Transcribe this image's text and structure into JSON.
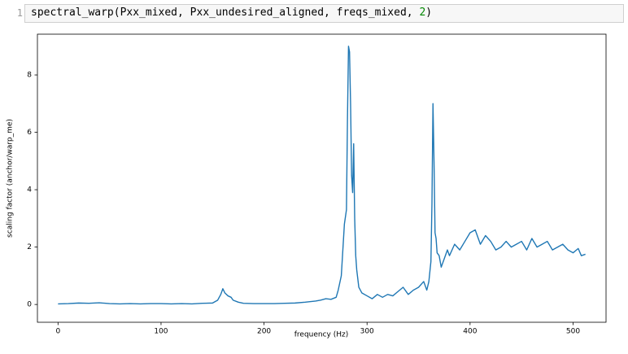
{
  "code": {
    "line_number": "1",
    "tokens": [
      "spectral_warp(Pxx_mixed, Pxx_undesired_aligned, freqs_mixed, ",
      "2",
      ")"
    ]
  },
  "chart_data": {
    "type": "line",
    "xlabel": "frequency (Hz)",
    "ylabel": "scaling factor (anchor/warp_me)",
    "xlim": [
      -20,
      532
    ],
    "ylim": [
      -0.62,
      9.42
    ],
    "xticks": [
      0,
      100,
      200,
      300,
      400,
      500
    ],
    "yticks": [
      0,
      2,
      4,
      6,
      8
    ],
    "series": [
      {
        "color": "#1f77b4",
        "x": [
          0,
          10,
          20,
          30,
          40,
          50,
          60,
          70,
          80,
          90,
          100,
          110,
          120,
          130,
          140,
          150,
          155,
          158,
          160,
          162,
          165,
          168,
          170,
          175,
          180,
          190,
          200,
          210,
          220,
          230,
          240,
          250,
          255,
          260,
          265,
          270,
          272,
          275,
          278,
          280,
          281,
          282,
          283,
          284,
          285,
          286,
          287,
          288,
          289,
          290,
          292,
          295,
          300,
          305,
          310,
          315,
          320,
          325,
          330,
          335,
          340,
          345,
          350,
          355,
          358,
          360,
          362,
          363,
          364,
          365,
          366,
          367,
          368,
          370,
          372,
          375,
          378,
          380,
          385,
          390,
          395,
          400,
          405,
          410,
          415,
          420,
          425,
          430,
          435,
          440,
          445,
          450,
          455,
          460,
          465,
          470,
          475,
          480,
          485,
          490,
          495,
          500,
          505,
          508,
          512
        ],
        "values": [
          0.02,
          0.03,
          0.05,
          0.04,
          0.06,
          0.03,
          0.02,
          0.03,
          0.02,
          0.03,
          0.03,
          0.02,
          0.03,
          0.02,
          0.04,
          0.05,
          0.15,
          0.35,
          0.55,
          0.4,
          0.3,
          0.25,
          0.15,
          0.08,
          0.04,
          0.03,
          0.03,
          0.03,
          0.04,
          0.05,
          0.08,
          0.12,
          0.15,
          0.2,
          0.18,
          0.25,
          0.5,
          1.0,
          2.8,
          3.3,
          6.5,
          9.0,
          8.8,
          7.0,
          4.5,
          3.9,
          5.6,
          3.0,
          1.7,
          1.2,
          0.6,
          0.4,
          0.3,
          0.2,
          0.35,
          0.25,
          0.35,
          0.3,
          0.45,
          0.6,
          0.35,
          0.5,
          0.6,
          0.8,
          0.5,
          0.8,
          1.5,
          3.5,
          7.0,
          5.0,
          2.5,
          2.3,
          1.8,
          1.7,
          1.3,
          1.6,
          1.9,
          1.7,
          2.1,
          1.9,
          2.2,
          2.5,
          2.6,
          2.1,
          2.4,
          2.2,
          1.9,
          2.0,
          2.2,
          2.0,
          2.1,
          2.2,
          1.9,
          2.3,
          2.0,
          2.1,
          2.2,
          1.9,
          2.0,
          2.1,
          1.9,
          1.8,
          1.95,
          1.7,
          1.75
        ]
      }
    ]
  }
}
